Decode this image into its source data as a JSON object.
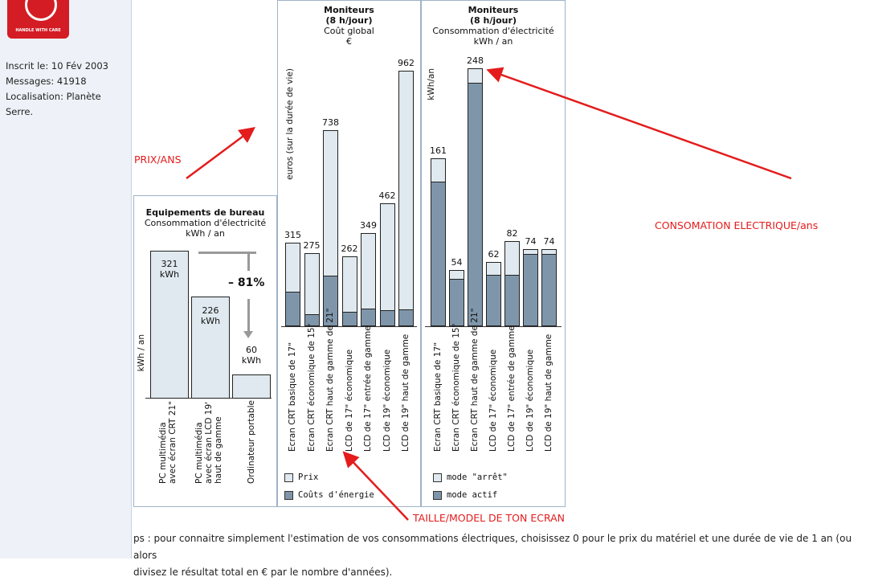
{
  "profile": {
    "avatar_text": "HANDLE WITH CARE",
    "joined": "Inscrit le: 10 Fév 2003",
    "messages": "Messages: 41918",
    "location_line1": "Localisation: Planète",
    "location_line2": "Serre."
  },
  "annotations": {
    "prix": "PRIX/ANS",
    "conso": "CONSOMATION ELECTRIQUE/ans",
    "taille": "TAILLE/MODEL DE TON ECRAN",
    "arrow_color": "#e41c1c"
  },
  "bureau_chart": {
    "title": "Equipements de bureau",
    "subtitle1": "Consommation d'électricité",
    "subtitle2": "kWh / an",
    "ylabel": "kWh / an",
    "reduction": "– 81%",
    "bars": [
      {
        "label_value": "321",
        "label_unit": "kWh",
        "xlabel1": "PC multimédia",
        "xlabel2": "avec écran CRT 21\"",
        "xlabel3": ""
      },
      {
        "label_value": "226",
        "label_unit": "kWh",
        "xlabel1": "PC multimédia",
        "xlabel2": "avec écran LCD 19'",
        "xlabel3": "haut de gamme"
      },
      {
        "label_value": "60",
        "label_unit": "kWh",
        "xlabel1": "Ordinateur portable",
        "xlabel2": "",
        "xlabel3": ""
      }
    ]
  },
  "cost_chart": {
    "title1": "Moniteurs",
    "title2": "(8 h/jour)",
    "title3": "Coût global",
    "title4": "€",
    "ylabel": "euros (sur la durée de vie)",
    "legend": [
      {
        "label": "Prix"
      },
      {
        "label": "Coûts d'énergie"
      }
    ],
    "labels": [
      "315",
      "275",
      "738",
      "262",
      "349",
      "462",
      "962"
    ],
    "categories": [
      "Ecran CRT basique de 17\"",
      "Ecran CRT économique de 15\"",
      "Ecran CRT haut de gamme de 21\"",
      "LCD de 17\" économique",
      "LCD de 17\" entrée de gamme",
      "LCD de 19\" économique",
      "LCD de 19\" haut de gamme"
    ]
  },
  "energy_chart": {
    "title1": "Moniteurs",
    "title2": "(8 h/jour)",
    "title3": "Consommation d'électricité",
    "title4": "kWh / an",
    "ylabel": "kWh/an",
    "legend": [
      {
        "label": "mode \"arrêt\""
      },
      {
        "label": "mode actif"
      }
    ],
    "labels": [
      "161",
      "54",
      "248",
      "62",
      "82",
      "74",
      "74"
    ],
    "categories": [
      "Ecran CRT basique de 17\"",
      "Ecran CRT économique de 15\"",
      "Ecran CRT haut de gamme de 21\"",
      "LCD de 17\" économique",
      "LCD de 17\" entrée de gamme",
      "LCD de 19\" économique",
      "LCD de 19\" haut de gamme"
    ]
  },
  "chart_data": [
    {
      "type": "bar",
      "title": "Equipements de bureau",
      "subtitle": "Consommation d'électricité kWh / an",
      "ylabel": "kWh / an",
      "categories": [
        "PC multimédia avec écran CRT 21\"",
        "PC multimédia avec écran LCD 19' haut de gamme",
        "Ordinateur portable"
      ],
      "values": [
        321,
        226,
        60
      ],
      "annotation": "– 81%",
      "ylim": [
        0,
        340
      ]
    },
    {
      "type": "bar",
      "stacked": true,
      "title": "Moniteurs (8 h/jour) Coût global €",
      "ylabel": "euros (sur la durée de vie)",
      "categories": [
        "Ecran CRT basique de 17\"",
        "Ecran CRT économique de 15\"",
        "Ecran CRT haut de gamme de 21\"",
        "LCD de 17\" économique",
        "LCD de 17\" entrée de gamme",
        "LCD de 19\" économique",
        "LCD de 19\" haut de gamme"
      ],
      "series": [
        {
          "name": "Coûts d'énergie",
          "values": [
            125,
            40,
            185,
            48,
            60,
            55,
            58
          ]
        },
        {
          "name": "Prix",
          "values": [
            190,
            235,
            553,
            214,
            289,
            407,
            904
          ]
        }
      ],
      "totals": [
        315,
        275,
        738,
        262,
        349,
        462,
        962
      ],
      "ylim": [
        0,
        1000
      ],
      "colors": {
        "Prix": "#dfe9ef",
        "Coûts d'énergie": "#7f96aa"
      }
    },
    {
      "type": "bar",
      "stacked": true,
      "title": "Moniteurs (8 h/jour) Consommation d'électricité kWh / an",
      "ylabel": "kWh/an",
      "categories": [
        "Ecran CRT basique de 17\"",
        "Ecran CRT économique de 15\"",
        "Ecran CRT haut de gamme de 21\"",
        "LCD de 17\" économique",
        "LCD de 17\" entrée de gamme",
        "LCD de 19\" économique",
        "LCD de 19\" haut de gamme"
      ],
      "series": [
        {
          "name": "mode actif",
          "values": [
            137,
            44,
            232,
            48,
            48,
            68,
            68
          ]
        },
        {
          "name": "mode \"arrêt\"",
          "values": [
            24,
            10,
            16,
            14,
            34,
            6,
            6
          ]
        }
      ],
      "totals": [
        161,
        54,
        248,
        62,
        82,
        74,
        74
      ],
      "ylim": [
        0,
        260
      ],
      "colors": {
        "mode \"arrêt\"": "#dfe9ef",
        "mode actif": "#7f96aa"
      }
    }
  ],
  "footer": {
    "line1": "ps : pour connaitre simplement l'estimation de vos consommations électriques, choisissez 0 pour le prix du matériel et une durée de vie de 1 an (ou alors",
    "line2": "divisez le résultat total en € par le nombre d'années)."
  }
}
